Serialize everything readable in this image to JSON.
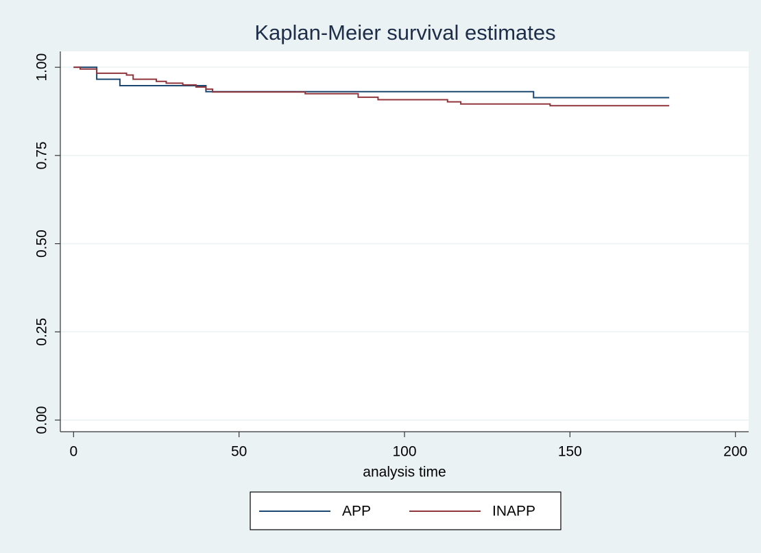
{
  "chart_data": {
    "type": "step",
    "title": "Kaplan-Meier survival estimates",
    "xlabel": "analysis time",
    "xlim": [
      -4,
      204
    ],
    "ylim": [
      -0.033,
      1.045
    ],
    "xticks": [
      0,
      50,
      100,
      150,
      200
    ],
    "yticks": [
      {
        "value": 0,
        "label": "0.00"
      },
      {
        "value": 0.25,
        "label": "0.25"
      },
      {
        "value": 0.5,
        "label": "0.50"
      },
      {
        "value": 0.75,
        "label": "0.75"
      },
      {
        "value": 1,
        "label": "1.00"
      }
    ],
    "grid": true,
    "legend": "bottom",
    "series": [
      {
        "name": "APP",
        "color": "#1a476f",
        "x": [
          0,
          7,
          14,
          40,
          139,
          180
        ],
        "values": [
          1.0,
          0.966,
          0.948,
          0.931,
          0.914,
          0.914
        ]
      },
      {
        "name": "INAPP",
        "color": "#90353b",
        "x": [
          0,
          2,
          7,
          16,
          18,
          25,
          28,
          33,
          37,
          40,
          42,
          70,
          86,
          92,
          113,
          117,
          144,
          180
        ],
        "values": [
          1.0,
          0.995,
          0.983,
          0.978,
          0.966,
          0.96,
          0.955,
          0.95,
          0.944,
          0.938,
          0.93,
          0.925,
          0.915,
          0.908,
          0.902,
          0.896,
          0.891,
          0.891
        ]
      }
    ]
  }
}
